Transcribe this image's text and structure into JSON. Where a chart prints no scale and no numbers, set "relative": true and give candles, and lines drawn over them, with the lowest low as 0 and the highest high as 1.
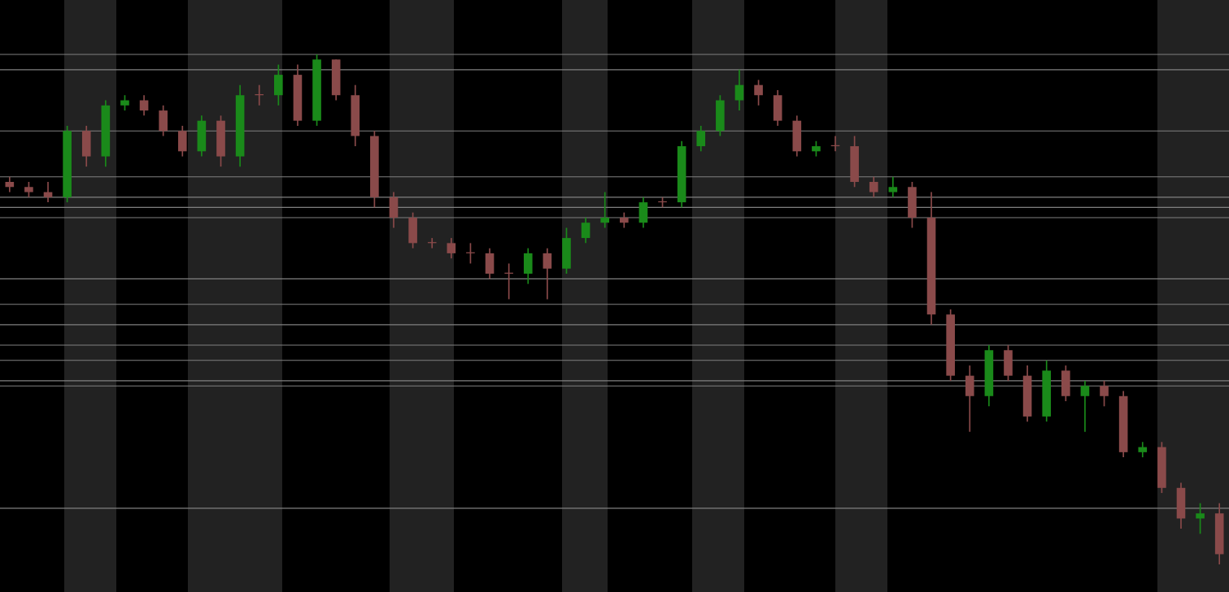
{
  "chart_data": {
    "type": "candlestick",
    "relative": true,
    "categories": [
      null,
      null,
      null,
      null,
      null,
      null,
      null,
      null,
      null,
      null,
      null,
      null,
      null,
      null,
      null,
      null,
      null,
      null,
      null,
      null,
      null,
      null,
      null,
      null,
      null,
      null,
      null,
      null,
      null,
      null,
      null,
      null,
      null,
      null,
      null,
      null,
      null,
      null,
      null,
      null,
      null,
      null,
      null,
      null,
      null,
      null,
      null,
      null,
      null,
      null,
      null,
      null,
      null,
      null,
      null,
      null,
      null,
      null,
      null,
      null,
      null,
      null,
      null,
      null
    ],
    "ohlc": [
      [
        0.75,
        0.76,
        0.73,
        0.74
      ],
      [
        0.74,
        0.75,
        0.72,
        0.73
      ],
      [
        0.73,
        0.75,
        0.71,
        0.72
      ],
      [
        0.72,
        0.86,
        0.71,
        0.85
      ],
      [
        0.85,
        0.86,
        0.78,
        0.8
      ],
      [
        0.8,
        0.91,
        0.78,
        0.9
      ],
      [
        0.9,
        0.92,
        0.89,
        0.91
      ],
      [
        0.91,
        0.92,
        0.88,
        0.89
      ],
      [
        0.89,
        0.9,
        0.84,
        0.85
      ],
      [
        0.85,
        0.86,
        0.8,
        0.81
      ],
      [
        0.81,
        0.88,
        0.8,
        0.87
      ],
      [
        0.87,
        0.88,
        0.78,
        0.8
      ],
      [
        0.8,
        0.94,
        0.78,
        0.92
      ],
      [
        0.92,
        0.94,
        0.9,
        0.92
      ],
      [
        0.92,
        0.98,
        0.9,
        0.96
      ],
      [
        0.96,
        0.98,
        0.86,
        0.87
      ],
      [
        0.87,
        1.0,
        0.86,
        0.99
      ],
      [
        0.99,
        0.99,
        0.91,
        0.92
      ],
      [
        0.92,
        0.94,
        0.82,
        0.84
      ],
      [
        0.84,
        0.85,
        0.7,
        0.72
      ],
      [
        0.72,
        0.73,
        0.66,
        0.68
      ],
      [
        0.68,
        0.69,
        0.62,
        0.63
      ],
      [
        0.63,
        0.64,
        0.62,
        0.63
      ],
      [
        0.63,
        0.64,
        0.6,
        0.61
      ],
      [
        0.61,
        0.63,
        0.59,
        0.61
      ],
      [
        0.61,
        0.62,
        0.56,
        0.57
      ],
      [
        0.57,
        0.59,
        0.52,
        0.57
      ],
      [
        0.57,
        0.62,
        0.55,
        0.61
      ],
      [
        0.61,
        0.62,
        0.52,
        0.58
      ],
      [
        0.58,
        0.66,
        0.57,
        0.64
      ],
      [
        0.64,
        0.68,
        0.63,
        0.67
      ],
      [
        0.67,
        0.73,
        0.66,
        0.68
      ],
      [
        0.68,
        0.69,
        0.66,
        0.67
      ],
      [
        0.67,
        0.72,
        0.66,
        0.71
      ],
      [
        0.71,
        0.72,
        0.7,
        0.71
      ],
      [
        0.71,
        0.83,
        0.7,
        0.82
      ],
      [
        0.82,
        0.86,
        0.81,
        0.85
      ],
      [
        0.85,
        0.92,
        0.84,
        0.91
      ],
      [
        0.91,
        0.97,
        0.89,
        0.94
      ],
      [
        0.94,
        0.95,
        0.9,
        0.92
      ],
      [
        0.92,
        0.93,
        0.86,
        0.87
      ],
      [
        0.87,
        0.88,
        0.8,
        0.81
      ],
      [
        0.81,
        0.83,
        0.8,
        0.82
      ],
      [
        0.82,
        0.84,
        0.81,
        0.82
      ],
      [
        0.82,
        0.84,
        0.74,
        0.75
      ],
      [
        0.75,
        0.76,
        0.72,
        0.73
      ],
      [
        0.73,
        0.76,
        0.72,
        0.74
      ],
      [
        0.74,
        0.75,
        0.66,
        0.68
      ],
      [
        0.68,
        0.73,
        0.47,
        0.49
      ],
      [
        0.49,
        0.5,
        0.36,
        0.37
      ],
      [
        0.37,
        0.39,
        0.26,
        0.33
      ],
      [
        0.33,
        0.43,
        0.31,
        0.42
      ],
      [
        0.42,
        0.43,
        0.36,
        0.37
      ],
      [
        0.37,
        0.39,
        0.28,
        0.29
      ],
      [
        0.29,
        0.4,
        0.28,
        0.38
      ],
      [
        0.38,
        0.39,
        0.32,
        0.33
      ],
      [
        0.33,
        0.36,
        0.26,
        0.35
      ],
      [
        0.35,
        0.36,
        0.31,
        0.33
      ],
      [
        0.33,
        0.34,
        0.21,
        0.22
      ],
      [
        0.22,
        0.24,
        0.21,
        0.23
      ],
      [
        0.23,
        0.24,
        0.14,
        0.15
      ],
      [
        0.15,
        0.16,
        0.07,
        0.09
      ],
      [
        0.09,
        0.12,
        0.06,
        0.1
      ],
      [
        0.1,
        0.12,
        0.0,
        0.02
      ]
    ],
    "colors": [
      "#8a4a4a",
      "#8a4a4a",
      "#8a4a4a",
      "#1a8a1a",
      "#8a4a4a",
      "#1a8a1a",
      "#1a8a1a",
      "#8a4a4a",
      "#8a4a4a",
      "#8a4a4a",
      "#1a8a1a",
      "#8a4a4a",
      "#1a8a1a",
      "#8a4a4a",
      "#1a8a1a",
      "#8a4a4a",
      "#1a8a1a",
      "#8a4a4a",
      "#8a4a4a",
      "#8a4a4a",
      "#8a4a4a",
      "#8a4a4a",
      "#8a4a4a",
      "#8a4a4a",
      "#8a4a4a",
      "#8a4a4a",
      "#8a4a4a",
      "#1a8a1a",
      "#8a4a4a",
      "#1a8a1a",
      "#1a8a1a",
      "#1a8a1a",
      "#8a4a4a",
      "#1a8a1a",
      "#8a4a4a",
      "#1a8a1a",
      "#1a8a1a",
      "#1a8a1a",
      "#1a8a1a",
      "#8a4a4a",
      "#8a4a4a",
      "#8a4a4a",
      "#1a8a1a",
      "#8a4a4a",
      "#8a4a4a",
      "#8a4a4a",
      "#1a8a1a",
      "#8a4a4a",
      "#8a4a4a",
      "#8a4a4a",
      "#8a4a4a",
      "#1a8a1a",
      "#8a4a4a",
      "#8a4a4a",
      "#1a8a1a",
      "#8a4a4a",
      "#1a8a1a",
      "#8a4a4a",
      "#8a4a4a",
      "#1a8a1a",
      "#8a4a4a",
      "#8a4a4a",
      "#1a8a1a",
      "#8a4a4a"
    ],
    "ref_lines": [
      {
        "axis": "y",
        "value": 1.0,
        "color": "#808080"
      },
      {
        "axis": "y",
        "value": 0.97,
        "color": "#808080"
      },
      {
        "axis": "y",
        "value": 0.85,
        "color": "#808080"
      },
      {
        "axis": "y",
        "value": 0.76,
        "color": "#808080"
      },
      {
        "axis": "y",
        "value": 0.72,
        "color": "#808080"
      },
      {
        "axis": "y",
        "value": 0.7,
        "color": "#808080"
      },
      {
        "axis": "y",
        "value": 0.68,
        "color": "#808080"
      },
      {
        "axis": "y",
        "value": 0.56,
        "color": "#808080"
      },
      {
        "axis": "y",
        "value": 0.51,
        "color": "#808080"
      },
      {
        "axis": "y",
        "value": 0.47,
        "color": "#808080"
      },
      {
        "axis": "y",
        "value": 0.43,
        "color": "#808080"
      },
      {
        "axis": "y",
        "value": 0.4,
        "color": "#808080"
      },
      {
        "axis": "y",
        "value": 0.36,
        "color": "#808080"
      },
      {
        "axis": "y",
        "value": 0.35,
        "color": "#808080"
      },
      {
        "axis": "y",
        "value": 0.11,
        "color": "#808080"
      }
    ]
  }
}
